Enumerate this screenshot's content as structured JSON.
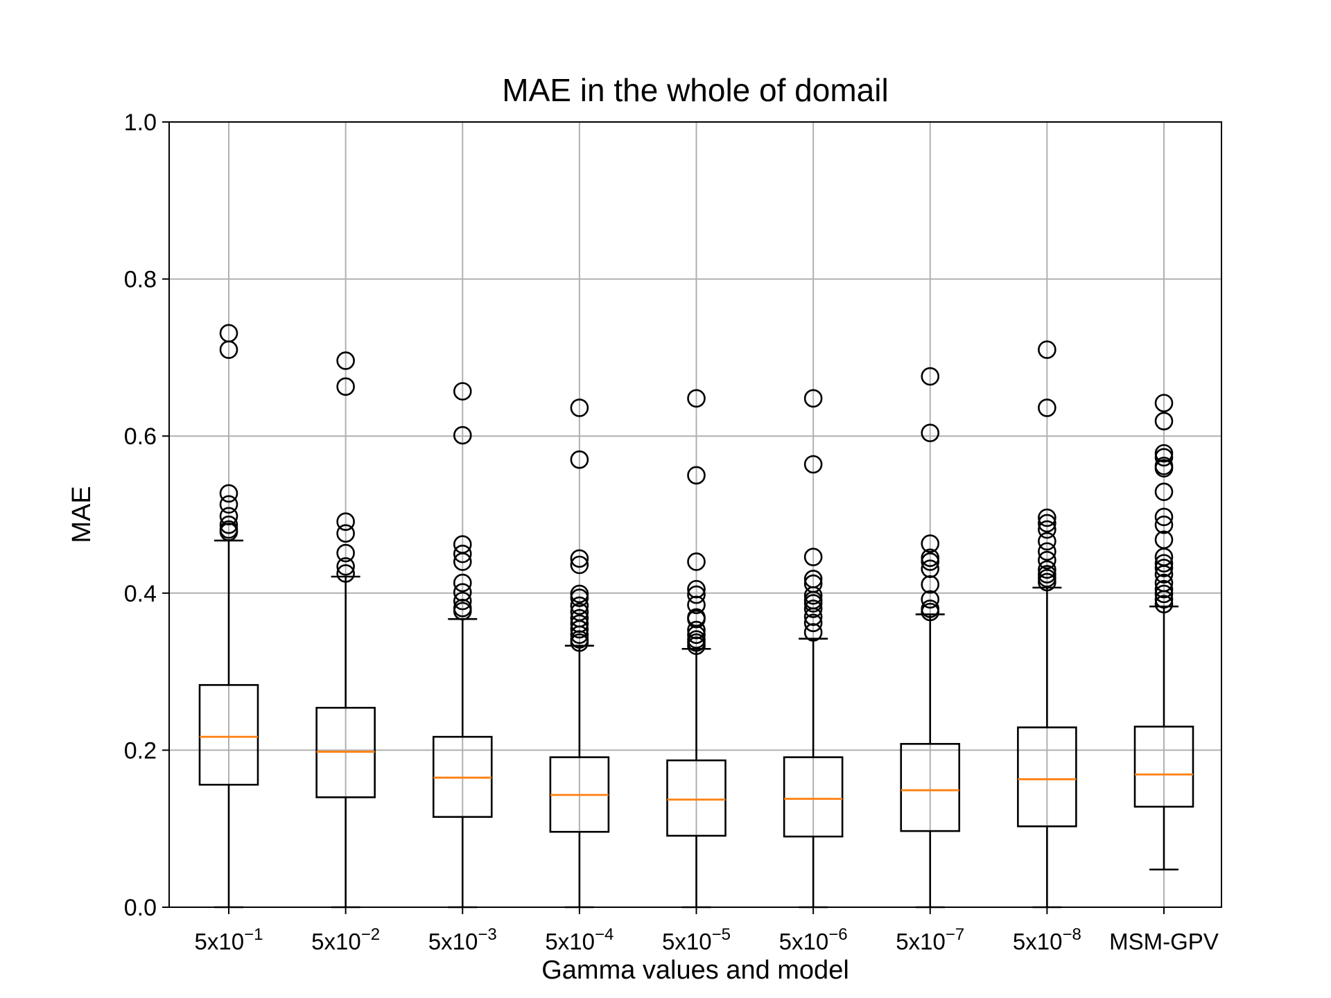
{
  "chart_data": {
    "type": "boxplot",
    "title": "MAE in the whole of domail",
    "xlabel": "Gamma values and model",
    "ylabel": "MAE",
    "ylim": [
      0.0,
      1.0
    ],
    "yticks": [
      "0.0",
      "0.2",
      "0.4",
      "0.6",
      "0.8",
      "1.0"
    ],
    "grid": true,
    "categories": [
      {
        "base": "5x10",
        "exp": "−1"
      },
      {
        "base": "5x10",
        "exp": "−2"
      },
      {
        "base": "5x10",
        "exp": "−3"
      },
      {
        "base": "5x10",
        "exp": "−4"
      },
      {
        "base": "5x10",
        "exp": "−5"
      },
      {
        "base": "5x10",
        "exp": "−6"
      },
      {
        "base": "5x10",
        "exp": "−7"
      },
      {
        "base": "5x10",
        "exp": "−8"
      },
      {
        "base": "MSM-GPV",
        "exp": ""
      }
    ],
    "boxes": [
      {
        "whisker_low": 0.0,
        "q1": 0.156,
        "median": 0.217,
        "q3": 0.283,
        "whisker_high": 0.467,
        "outliers": [
          0.731,
          0.71,
          0.527,
          0.513,
          0.498,
          0.487,
          0.481,
          0.478
        ]
      },
      {
        "whisker_low": 0.0,
        "q1": 0.14,
        "median": 0.198,
        "q3": 0.254,
        "whisker_high": 0.421,
        "outliers": [
          0.696,
          0.663,
          0.491,
          0.476,
          0.451,
          0.434,
          0.425
        ]
      },
      {
        "whisker_low": 0.0,
        "q1": 0.115,
        "median": 0.165,
        "q3": 0.217,
        "whisker_high": 0.367,
        "outliers": [
          0.657,
          0.601,
          0.462,
          0.45,
          0.44,
          0.413,
          0.401,
          0.39,
          0.381,
          0.377
        ]
      },
      {
        "whisker_low": 0.0,
        "q1": 0.096,
        "median": 0.143,
        "q3": 0.191,
        "whisker_high": 0.333,
        "outliers": [
          0.636,
          0.57,
          0.444,
          0.436,
          0.399,
          0.394,
          0.384,
          0.376,
          0.368,
          0.361,
          0.354,
          0.347,
          0.341,
          0.337
        ]
      },
      {
        "whisker_low": 0.0,
        "q1": 0.091,
        "median": 0.137,
        "q3": 0.187,
        "whisker_high": 0.329,
        "outliers": [
          0.648,
          0.55,
          0.44,
          0.405,
          0.398,
          0.385,
          0.369,
          0.367,
          0.353,
          0.347,
          0.341,
          0.337,
          0.333
        ]
      },
      {
        "whisker_low": 0.0,
        "q1": 0.09,
        "median": 0.138,
        "q3": 0.191,
        "whisker_high": 0.342,
        "outliers": [
          0.648,
          0.564,
          0.446,
          0.418,
          0.412,
          0.397,
          0.391,
          0.387,
          0.38,
          0.37,
          0.362,
          0.35
        ]
      },
      {
        "whisker_low": 0.0,
        "q1": 0.097,
        "median": 0.149,
        "q3": 0.208,
        "whisker_high": 0.373,
        "outliers": [
          0.676,
          0.604,
          0.463,
          0.445,
          0.44,
          0.431,
          0.411,
          0.392,
          0.38,
          0.376
        ]
      },
      {
        "whisker_low": 0.0,
        "q1": 0.103,
        "median": 0.163,
        "q3": 0.229,
        "whisker_high": 0.407,
        "outliers": [
          0.71,
          0.636,
          0.496,
          0.489,
          0.481,
          0.466,
          0.453,
          0.442,
          0.43,
          0.424,
          0.419,
          0.414
        ]
      },
      {
        "whisker_low": 0.048,
        "q1": 0.128,
        "median": 0.169,
        "q3": 0.23,
        "whisker_high": 0.383,
        "outliers": [
          0.642,
          0.619,
          0.578,
          0.573,
          0.562,
          0.559,
          0.529,
          0.497,
          0.487,
          0.468,
          0.446,
          0.438,
          0.432,
          0.424,
          0.413,
          0.405,
          0.399,
          0.392,
          0.386
        ]
      }
    ],
    "colors": {
      "median": "#ff7f0e",
      "box": "#000000",
      "grid": "#b0b0b0"
    }
  }
}
